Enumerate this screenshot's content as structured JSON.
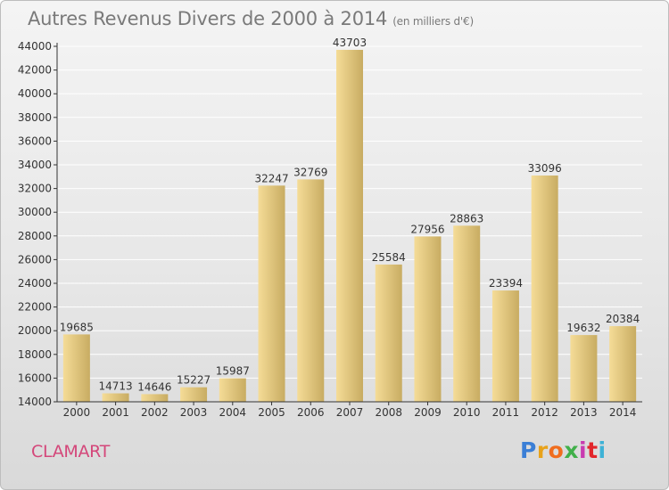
{
  "title": "Autres Revenus Divers de 2000 à 2014",
  "unit_note": "(en milliers d'€)",
  "city": "CLAMART",
  "logo": {
    "letters": [
      {
        "ch": "P",
        "color": "#3b7fd6"
      },
      {
        "ch": "r",
        "color": "#e8a21a"
      },
      {
        "ch": "o",
        "color": "#f06d1e"
      },
      {
        "ch": "x",
        "color": "#41b04a"
      },
      {
        "ch": "i",
        "color": "#c93bb0"
      },
      {
        "ch": "t",
        "color": "#e2262b"
      },
      {
        "ch": "i",
        "color": "#3fb2d6"
      }
    ]
  },
  "colors": {
    "bar_light": "#f5dc97",
    "bar_dark": "#c8ac62",
    "axis": "#333333",
    "grid": "#ffffff",
    "label_text": "#333333"
  },
  "chart_data": {
    "type": "bar",
    "categories": [
      "2000",
      "2001",
      "2002",
      "2003",
      "2004",
      "2005",
      "2006",
      "2007",
      "2008",
      "2009",
      "2010",
      "2011",
      "2012",
      "2013",
      "2014"
    ],
    "values": [
      19685,
      14713,
      14646,
      15227,
      15987,
      32247,
      32769,
      43703,
      25584,
      27956,
      28863,
      23394,
      33096,
      19632,
      20384
    ],
    "ylim": [
      14000,
      44000
    ],
    "yticks": [
      14000,
      16000,
      18000,
      20000,
      22000,
      24000,
      26000,
      28000,
      30000,
      32000,
      34000,
      36000,
      38000,
      40000,
      42000,
      44000
    ],
    "grid": true,
    "legend": "none"
  }
}
